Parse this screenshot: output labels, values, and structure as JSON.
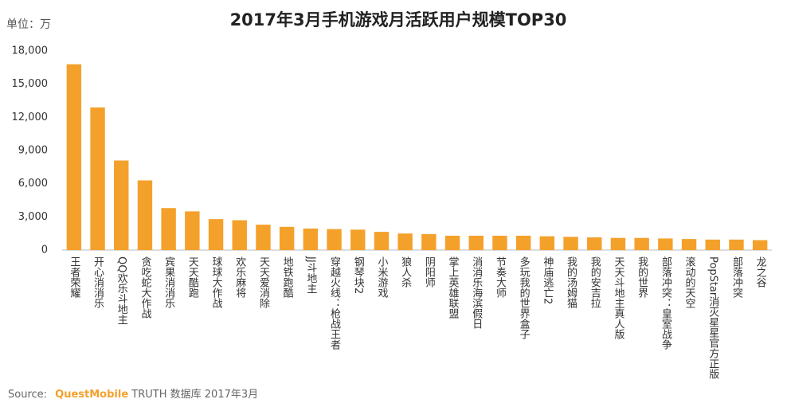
{
  "chart_data": {
    "type": "bar",
    "title": "2017年3月手机游戏月活跃用户规模TOP30",
    "unit_label": "单位：万",
    "categories": [
      "王者荣耀",
      "开心消消乐",
      "QQ欢乐斗地主",
      "贪吃蛇大作战",
      "宾果消消乐",
      "天天酷跑",
      "球球大作战",
      "欢乐麻将",
      "天天爱消除",
      "地铁跑酷",
      "JJ斗地主",
      "穿越火线：枪战王者",
      "钢琴块2",
      "小米游戏",
      "狼人杀",
      "阴阳师",
      "掌上英雄联盟",
      "消消乐海滨假日",
      "节奏大师",
      "多玩我的世界盒子",
      "神庙逃亡2",
      "我的汤姆猫",
      "我的安吉拉",
      "天天斗地主真人版",
      "我的世界",
      "部落冲突：皇室战争",
      "滚动的天空",
      "PopStar消灭星星官方正版",
      "部落冲突",
      "龙之谷"
    ],
    "values": [
      16800,
      12900,
      8100,
      6300,
      3800,
      3500,
      2800,
      2700,
      2300,
      2100,
      1950,
      1900,
      1850,
      1650,
      1500,
      1450,
      1300,
      1300,
      1300,
      1300,
      1250,
      1200,
      1150,
      1100,
      1100,
      1050,
      1000,
      950,
      950,
      900
    ],
    "color": "#f4a12b",
    "ylim": [
      0,
      18000
    ],
    "yticks": [
      0,
      {
        "value": 3000,
        "label": "3,000"
      },
      {
        "value": 6000,
        "label": "6,000"
      },
      {
        "value": 9000,
        "label": "9,000"
      },
      {
        "value": 12000,
        "label": "12,000"
      },
      {
        "value": 15000,
        "label": "15,000"
      },
      {
        "value": 18000,
        "label": "18,000"
      }
    ],
    "grid": false,
    "source": {
      "label": "Source:",
      "brand": "QuestMobile",
      "text": "TRUTH 数据库 2017年3月"
    }
  }
}
